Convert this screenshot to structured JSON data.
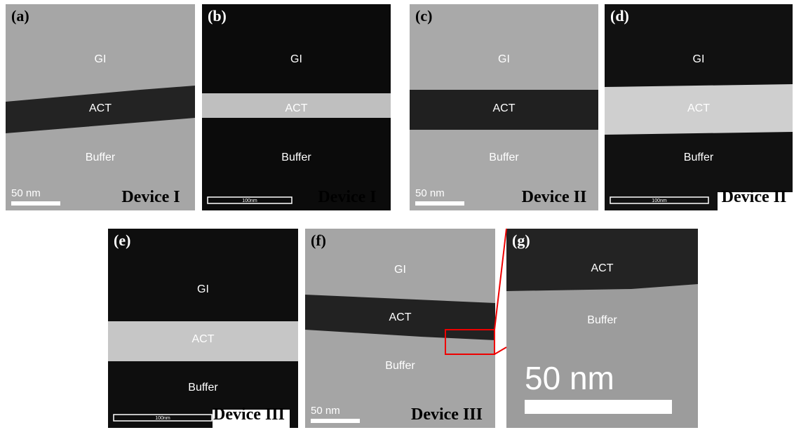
{
  "panels": [
    {
      "label": "(a)",
      "layers": [
        "GI",
        "ACT",
        "Buffer"
      ],
      "scale_bar": "50 nm",
      "device": "Device I"
    },
    {
      "label": "(b)",
      "layers": [
        "GI",
        "ACT",
        "Buffer"
      ],
      "scale_bar": "100nm",
      "device": "Device I"
    },
    {
      "label": "(c)",
      "layers": [
        "GI",
        "ACT",
        "Buffer"
      ],
      "scale_bar": "50 nm",
      "device": "Device II"
    },
    {
      "label": "(d)",
      "layers": [
        "GI",
        "ACT",
        "Buffer"
      ],
      "scale_bar": "100nm",
      "device": "Device II"
    },
    {
      "label": "(e)",
      "layers": [
        "GI",
        "ACT",
        "Buffer"
      ],
      "scale_bar": "100nm",
      "device": "Device III"
    },
    {
      "label": "(f)",
      "layers": [
        "GI",
        "ACT",
        "Buffer"
      ],
      "scale_bar": "50 nm",
      "device": "Device III"
    },
    {
      "label": "(g)",
      "layers": [
        "ACT",
        "Buffer"
      ],
      "scale_bar": "50 nm"
    }
  ]
}
